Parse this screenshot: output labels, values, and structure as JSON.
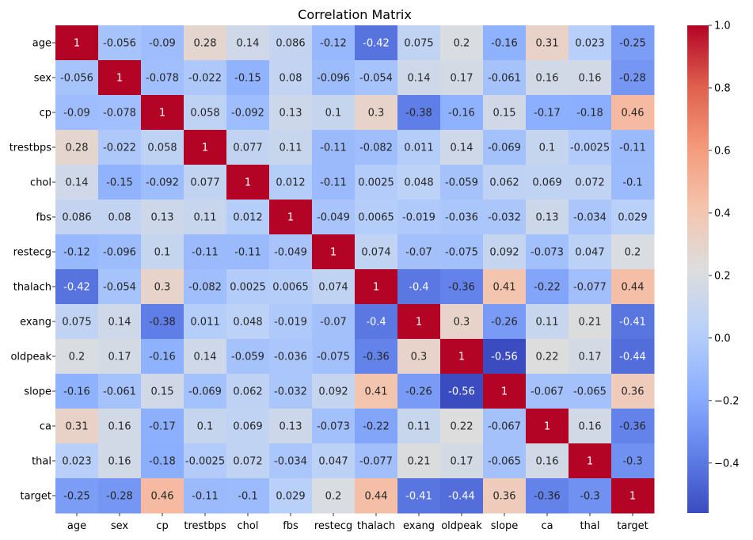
{
  "chart_data": {
    "type": "heatmap",
    "title": "Correlation Matrix",
    "xlabel": "",
    "ylabel": "",
    "colormap": "coolwarm",
    "vmin": -0.56,
    "vmax": 1.0,
    "colorbar_ticks": [
      "1.0",
      "0.8",
      "0.6",
      "0.4",
      "0.2",
      "0.0",
      "−0.2",
      "−0.4"
    ],
    "colorbar_tick_values": [
      1.0,
      0.8,
      0.6,
      0.4,
      0.2,
      0.0,
      -0.2,
      -0.4
    ],
    "labels": [
      "age",
      "sex",
      "cp",
      "trestbps",
      "chol",
      "fbs",
      "restecg",
      "thalach",
      "exang",
      "oldpeak",
      "slope",
      "ca",
      "thal",
      "target"
    ],
    "matrix": [
      [
        "1",
        "-0.056",
        "-0.09",
        "0.28",
        "0.14",
        "0.086",
        "-0.12",
        "-0.42",
        "0.075",
        "0.2",
        "-0.16",
        "0.31",
        "0.023",
        "-0.25"
      ],
      [
        "-0.056",
        "1",
        "-0.078",
        "-0.022",
        "-0.15",
        "0.08",
        "-0.096",
        "-0.054",
        "0.14",
        "0.17",
        "-0.061",
        "0.16",
        "0.16",
        "-0.28"
      ],
      [
        "-0.09",
        "-0.078",
        "1",
        "0.058",
        "-0.092",
        "0.13",
        "0.1",
        "0.3",
        "-0.38",
        "-0.16",
        "0.15",
        "-0.17",
        "-0.18",
        "0.46"
      ],
      [
        "0.28",
        "-0.022",
        "0.058",
        "1",
        "0.077",
        "0.11",
        "-0.11",
        "-0.082",
        "0.011",
        "0.14",
        "-0.069",
        "0.1",
        "-0.0025",
        "-0.11"
      ],
      [
        "0.14",
        "-0.15",
        "-0.092",
        "0.077",
        "1",
        "0.012",
        "-0.11",
        "0.0025",
        "0.048",
        "-0.059",
        "0.062",
        "0.069",
        "0.072",
        "-0.1"
      ],
      [
        "0.086",
        "0.08",
        "0.13",
        "0.11",
        "0.012",
        "1",
        "-0.049",
        "0.0065",
        "-0.019",
        "-0.036",
        "-0.032",
        "0.13",
        "-0.034",
        "0.029"
      ],
      [
        "-0.12",
        "-0.096",
        "0.1",
        "-0.11",
        "-0.11",
        "-0.049",
        "1",
        "0.074",
        "-0.07",
        "-0.075",
        "0.092",
        "-0.073",
        "0.047",
        "0.2"
      ],
      [
        "-0.42",
        "-0.054",
        "0.3",
        "-0.082",
        "0.0025",
        "0.0065",
        "0.074",
        "1",
        "-0.4",
        "-0.36",
        "0.41",
        "-0.22",
        "-0.077",
        "0.44"
      ],
      [
        "0.075",
        "0.14",
        "-0.38",
        "0.011",
        "0.048",
        "-0.019",
        "-0.07",
        "-0.4",
        "1",
        "0.3",
        "-0.26",
        "0.11",
        "0.21",
        "-0.41"
      ],
      [
        "0.2",
        "0.17",
        "-0.16",
        "0.14",
        "-0.059",
        "-0.036",
        "-0.075",
        "-0.36",
        "0.3",
        "1",
        "-0.56",
        "0.22",
        "0.17",
        "-0.44"
      ],
      [
        "-0.16",
        "-0.061",
        "0.15",
        "-0.069",
        "0.062",
        "-0.032",
        "0.092",
        "0.41",
        "-0.26",
        "-0.56",
        "1",
        "-0.067",
        "-0.065",
        "0.36"
      ],
      [
        "0.31",
        "0.16",
        "-0.17",
        "0.1",
        "0.069",
        "0.13",
        "-0.073",
        "-0.22",
        "0.11",
        "0.22",
        "-0.067",
        "1",
        "0.16",
        "-0.36"
      ],
      [
        "0.023",
        "0.16",
        "-0.18",
        "-0.0025",
        "0.072",
        "-0.034",
        "0.047",
        "-0.077",
        "0.21",
        "0.17",
        "-0.065",
        "0.16",
        "1",
        "-0.3"
      ],
      [
        "-0.25",
        "-0.28",
        "0.46",
        "-0.11",
        "-0.1",
        "0.029",
        "0.2",
        "0.44",
        "-0.41",
        "-0.44",
        "0.36",
        "-0.36",
        "-0.3",
        "1"
      ]
    ]
  }
}
